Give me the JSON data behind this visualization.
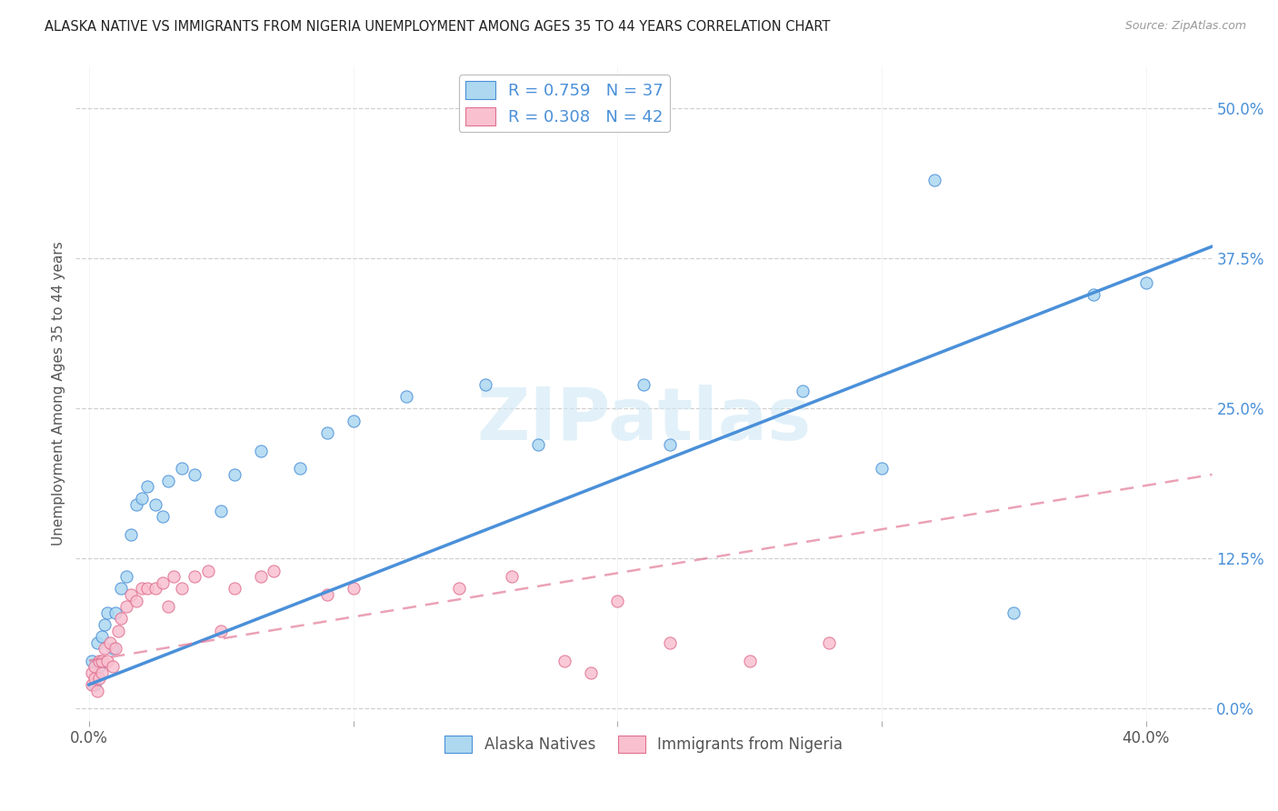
{
  "title": "ALASKA NATIVE VS IMMIGRANTS FROM NIGERIA UNEMPLOYMENT AMONG AGES 35 TO 44 YEARS CORRELATION CHART",
  "source": "Source: ZipAtlas.com",
  "ylabel": "Unemployment Among Ages 35 to 44 years",
  "xlabel_ticks_show": [
    "0.0%",
    "",
    "",
    "",
    "40.0%"
  ],
  "xlabel_vals": [
    0.0,
    0.1,
    0.2,
    0.3,
    0.4
  ],
  "ylabel_ticks": [
    "0.0%",
    "12.5%",
    "25.0%",
    "37.5%",
    "50.0%"
  ],
  "ylabel_vals": [
    0.0,
    0.125,
    0.25,
    0.375,
    0.5
  ],
  "xlim": [
    -0.005,
    0.425
  ],
  "ylim": [
    -0.01,
    0.535
  ],
  "alaska_R": 0.759,
  "alaska_N": 37,
  "nigeria_R": 0.308,
  "nigeria_N": 42,
  "alaska_color": "#add8f0",
  "alaska_line_color": "#4a90d9",
  "nigeria_color": "#f9c0d0",
  "nigeria_line_color": "#e07090",
  "watermark_color": "#d0e8f5",
  "background_color": "#ffffff",
  "grid_color": "#d0d0d0",
  "alaska_x": [
    0.001,
    0.002,
    0.003,
    0.004,
    0.005,
    0.006,
    0.007,
    0.009,
    0.01,
    0.012,
    0.014,
    0.016,
    0.018,
    0.02,
    0.022,
    0.025,
    0.028,
    0.03,
    0.035,
    0.04,
    0.05,
    0.055,
    0.065,
    0.08,
    0.09,
    0.1,
    0.12,
    0.15,
    0.17,
    0.21,
    0.22,
    0.27,
    0.3,
    0.32,
    0.35,
    0.38,
    0.4
  ],
  "alaska_y": [
    0.04,
    0.02,
    0.055,
    0.035,
    0.06,
    0.07,
    0.08,
    0.05,
    0.08,
    0.1,
    0.11,
    0.145,
    0.17,
    0.175,
    0.185,
    0.17,
    0.16,
    0.19,
    0.2,
    0.195,
    0.165,
    0.195,
    0.215,
    0.2,
    0.23,
    0.24,
    0.26,
    0.27,
    0.22,
    0.27,
    0.22,
    0.265,
    0.2,
    0.44,
    0.08,
    0.345,
    0.355
  ],
  "nigeria_x": [
    0.001,
    0.001,
    0.002,
    0.002,
    0.003,
    0.004,
    0.004,
    0.005,
    0.005,
    0.006,
    0.007,
    0.008,
    0.009,
    0.01,
    0.011,
    0.012,
    0.014,
    0.016,
    0.018,
    0.02,
    0.022,
    0.025,
    0.028,
    0.03,
    0.032,
    0.035,
    0.04,
    0.045,
    0.05,
    0.055,
    0.065,
    0.07,
    0.09,
    0.1,
    0.14,
    0.16,
    0.18,
    0.19,
    0.2,
    0.22,
    0.25,
    0.28
  ],
  "nigeria_y": [
    0.02,
    0.03,
    0.025,
    0.035,
    0.015,
    0.04,
    0.025,
    0.03,
    0.04,
    0.05,
    0.04,
    0.055,
    0.035,
    0.05,
    0.065,
    0.075,
    0.085,
    0.095,
    0.09,
    0.1,
    0.1,
    0.1,
    0.105,
    0.085,
    0.11,
    0.1,
    0.11,
    0.115,
    0.065,
    0.1,
    0.11,
    0.115,
    0.095,
    0.1,
    0.1,
    0.11,
    0.04,
    0.03,
    0.09,
    0.055,
    0.04,
    0.055
  ],
  "alaska_line_x0": 0.0,
  "alaska_line_x1": 0.425,
  "alaska_line_y0": 0.02,
  "alaska_line_y1": 0.385,
  "nigeria_line_x0": 0.0,
  "nigeria_line_x1": 0.425,
  "nigeria_line_y0": 0.04,
  "nigeria_line_y1": 0.195
}
